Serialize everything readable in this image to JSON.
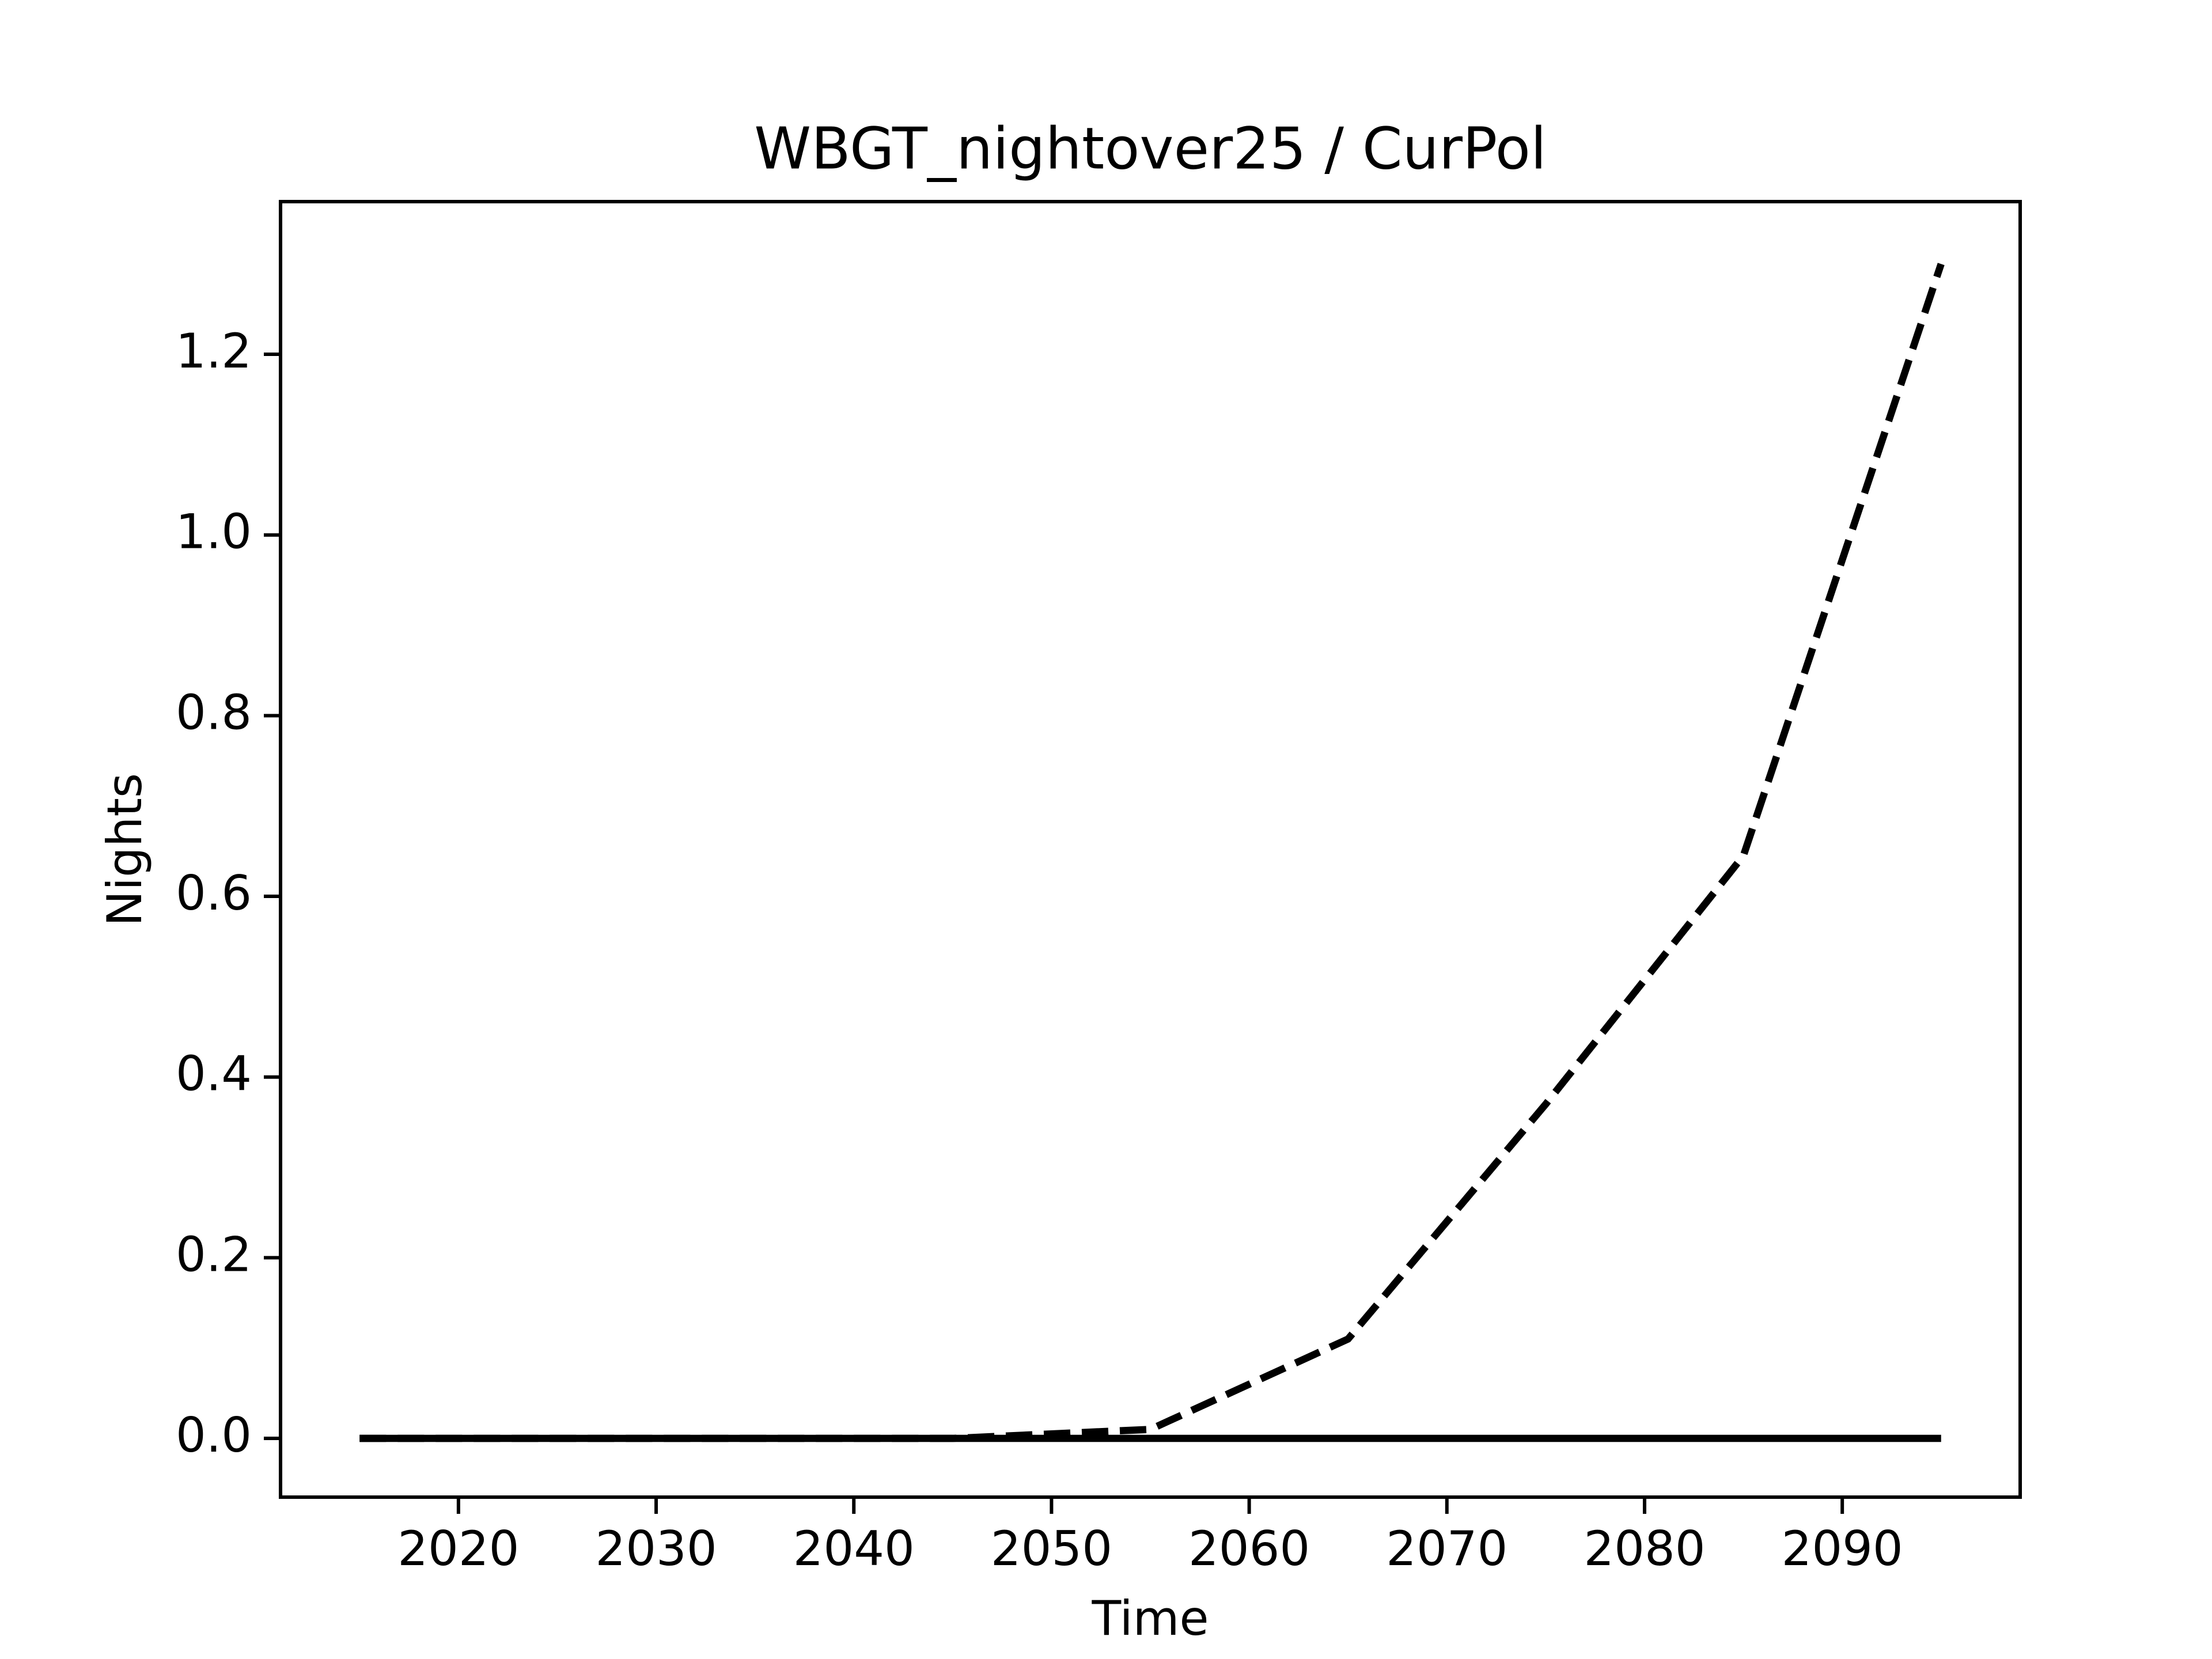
{
  "chart_data": {
    "type": "line",
    "title": "WBGT_nightover25 / CurPol",
    "x_label": "Time",
    "y_label": "Nights",
    "x": [
      2015,
      2025,
      2035,
      2045,
      2055,
      2065,
      2075,
      2085,
      2095
    ],
    "series": [
      {
        "color": "#000000",
        "dash": true,
        "values": [
          0,
          0,
          0,
          0,
          0.01,
          0.11,
          0.37,
          0.645,
          1.3
        ]
      },
      {
        "color": "#000000",
        "dash": false,
        "values": [
          0,
          0,
          0,
          0,
          0,
          0,
          0,
          0,
          0
        ]
      }
    ],
    "xlim": [
      2011,
      2099
    ],
    "xticks": [
      2020,
      2030,
      2040,
      2050,
      2060,
      2070,
      2080,
      2090
    ],
    "ylim": [
      -0.065,
      1.369
    ],
    "yticks": [
      {
        "value": 0,
        "label": "0.0"
      },
      {
        "value": 0.2,
        "label": "0.2"
      },
      {
        "value": 0.4,
        "label": "0.4"
      },
      {
        "value": 0.6,
        "label": "0.6"
      },
      {
        "value": 0.8,
        "label": "0.8"
      },
      {
        "value": 1.0,
        "label": "1.0"
      },
      {
        "value": 1.2,
        "label": "1.2"
      }
    ],
    "grid": false
  }
}
